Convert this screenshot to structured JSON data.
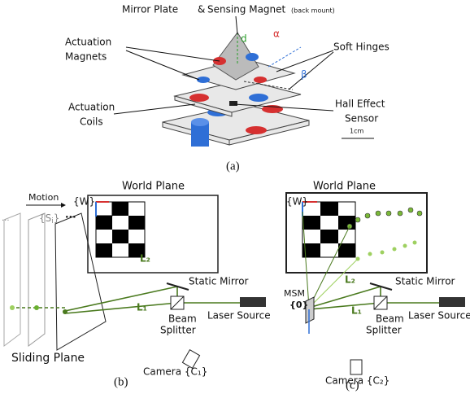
{
  "panel_a": {
    "top_label": [
      "Mirror Plate",
      "&",
      "Sensing Magnet",
      "(back mount)"
    ],
    "actuation_magnets": [
      "Actuation",
      "Magnets"
    ],
    "soft_hinges": "Soft Hinges",
    "actuation_coils": [
      "Actuation",
      "Coils"
    ],
    "hall_sensor": [
      "Hall Effect",
      "Sensor"
    ],
    "axis_d": "d",
    "axis_alpha": "α",
    "axis_beta": "β",
    "scale": "1cm",
    "caption": "(a)"
  },
  "panel_b": {
    "world_plane": "World Plane",
    "world_frame": "{W}",
    "motion": "Motion",
    "slide_frame": "{S",
    "slide_sub": "i",
    "slide_end": "}",
    "dots_top": "...",
    "dots_left": "...",
    "l2": "L₂",
    "l1": "L₁",
    "static_mirror": "Static Mirror",
    "beam_splitter": [
      "Beam",
      "Splitter"
    ],
    "laser_source": "Laser Source",
    "sliding_plane": "Sliding Plane",
    "camera": "Camera {C₁}",
    "caption": "(b)"
  },
  "panel_c": {
    "world_plane": "World Plane",
    "world_frame": "{W}",
    "l2": "L₂",
    "l1": "L₁",
    "static_mirror": "Static Mirror",
    "msm": "MSM",
    "msm_frame": "{0}",
    "beam_splitter": [
      "Beam",
      "Splitter"
    ],
    "laser_source": "Laser Source",
    "camera": "Camera {C₂}",
    "caption": "(c)"
  }
}
